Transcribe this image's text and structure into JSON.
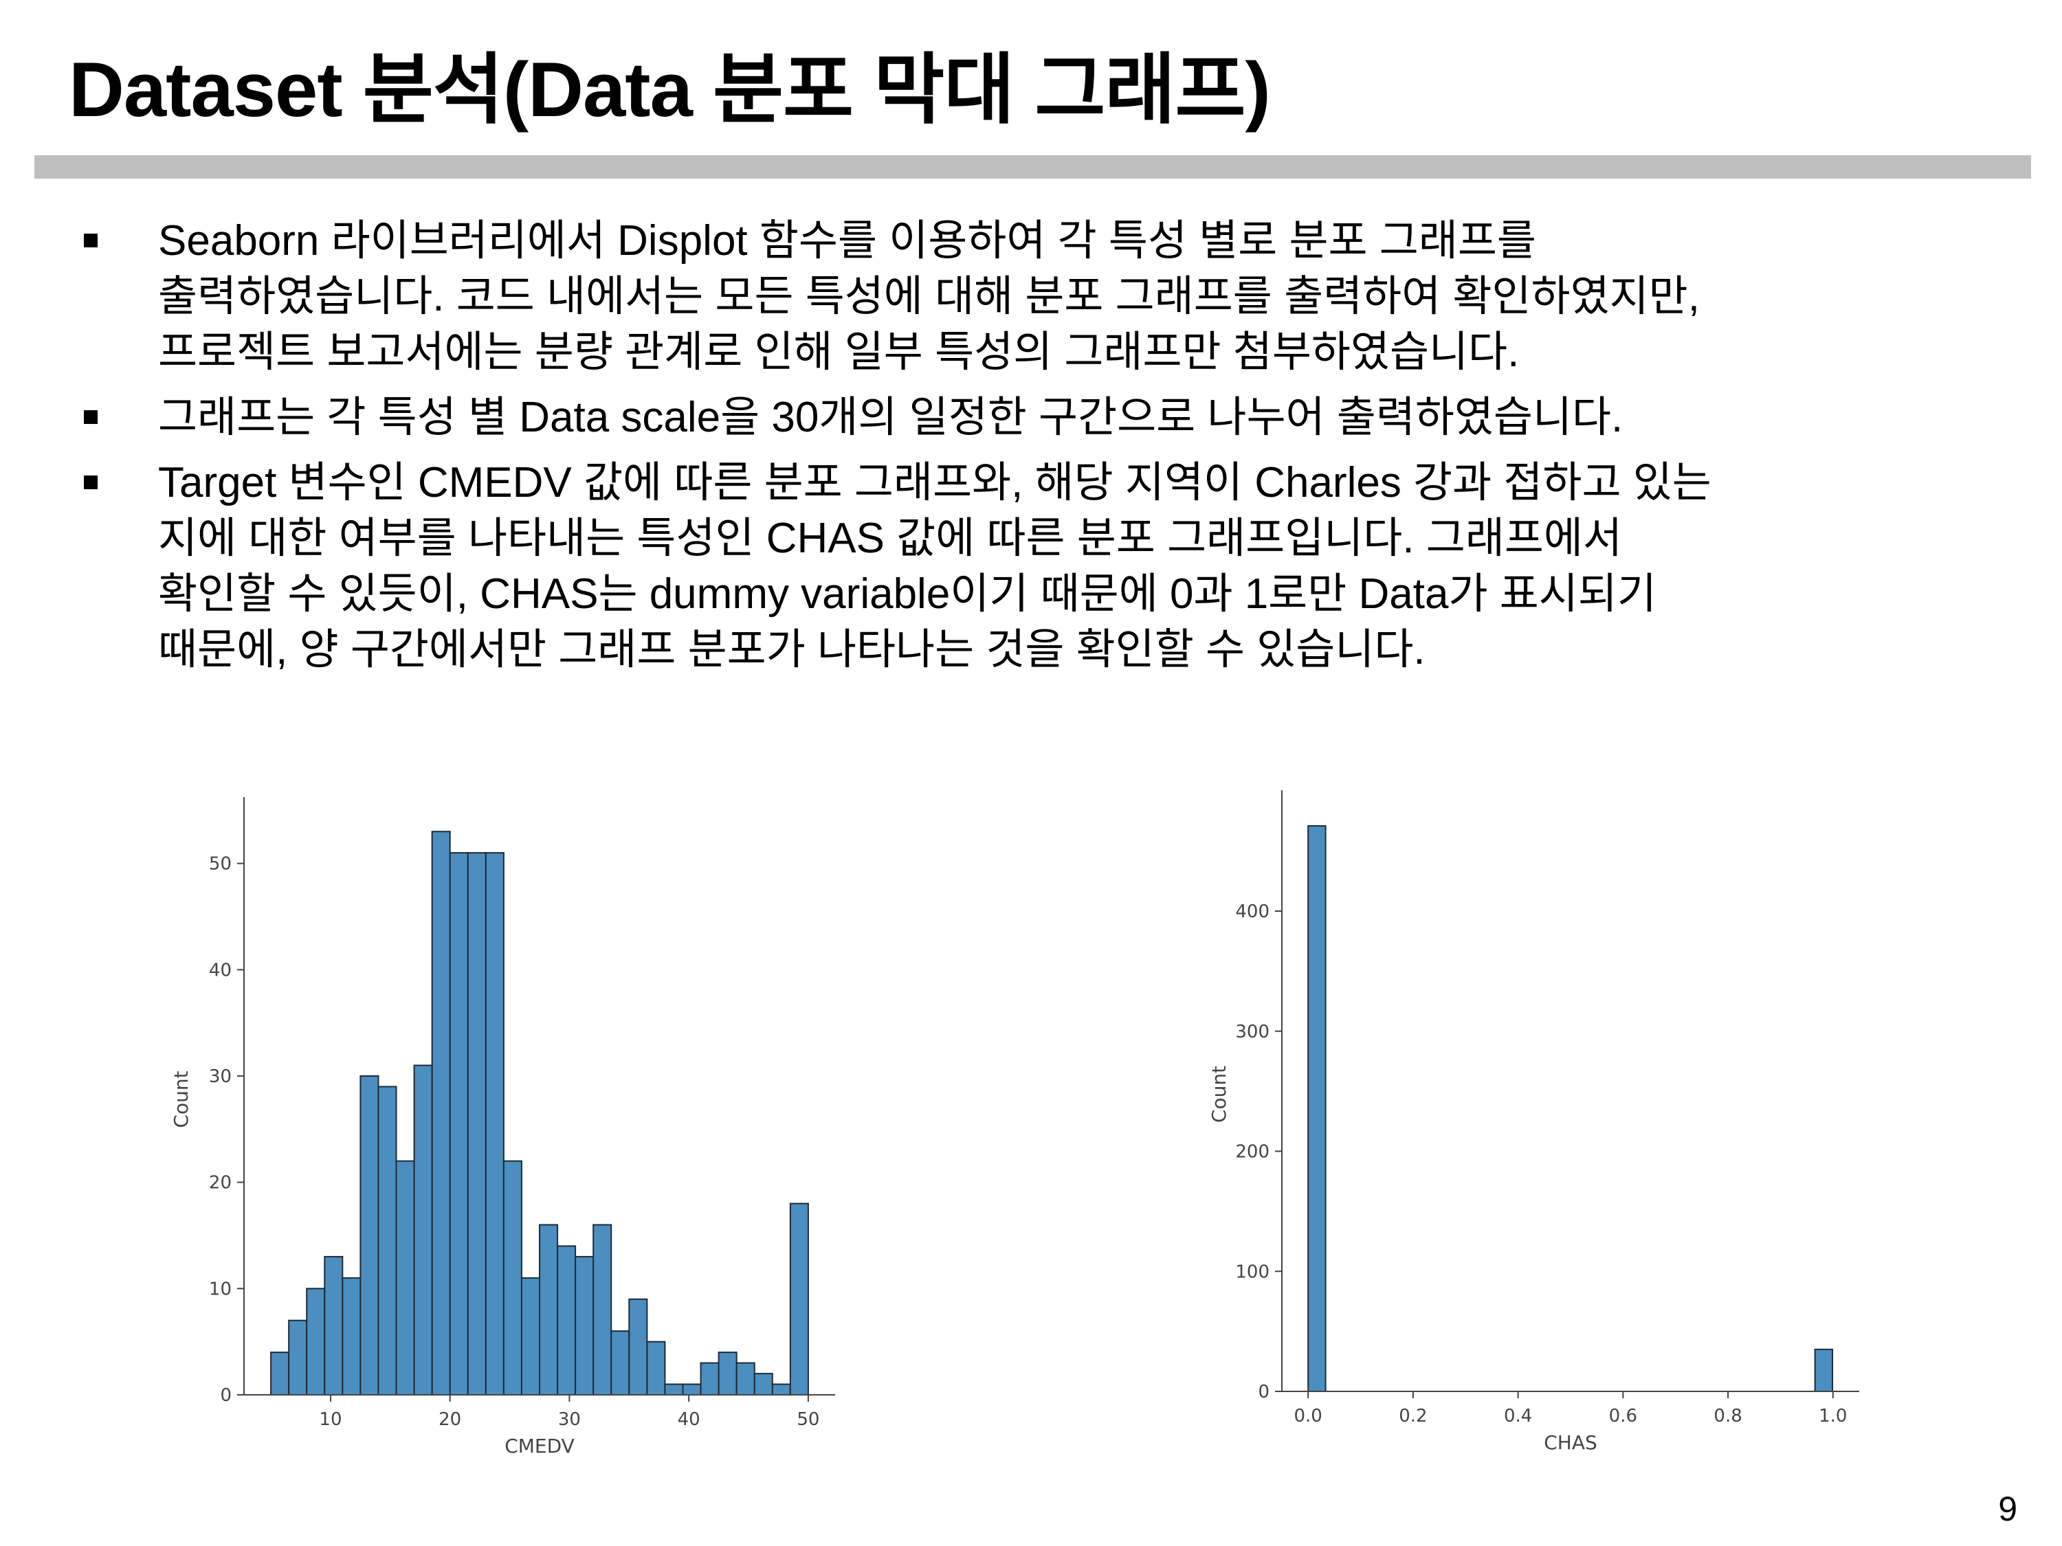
{
  "slide": {
    "title": "Dataset 분석(Data 분포 막대 그래프)",
    "page_number": "9",
    "bullets": [
      [
        "Seaborn 라이브러리에서 Displot 함수를 이용하여 각 특성 별로 분포 그래프를",
        "출력하였습니다. 코드 내에서는 모든 특성에 대해 분포 그래프를 출력하여 확인하였지만,",
        "프로젝트 보고서에는 분량 관계로 인해 일부 특성의 그래프만 첨부하였습니다."
      ],
      [
        "그래프는 각 특성 별 Data scale을 30개의 일정한 구간으로 나누어 출력하였습니다."
      ],
      [
        "Target 변수인 CMEDV 값에 따른 분포 그래프와, 해당 지역이 Charles 강과 접하고 있는",
        "지에 대한 여부를 나타내는 특성인 CHAS 값에 따른 분포 그래프입니다. 그래프에서",
        "확인할 수 있듯이, CHAS는 dummy variable이기 때문에 0과 1로만 Data가 표시되기",
        "때문에, 양 구간에서만 그래프 분포가 나타나는 것을 확인할 수 있습니다."
      ]
    ]
  },
  "colors": {
    "bar": "#4c8ebf",
    "bar_edge": "#1f2a36",
    "axis": "#444444"
  },
  "chart_data": [
    {
      "type": "bar",
      "xlabel": "CMEDV",
      "ylabel": "Count",
      "bin_start": 5.0,
      "bin_width": 1.5,
      "values": [
        4,
        7,
        10,
        13,
        11,
        30,
        29,
        22,
        31,
        53,
        51,
        51,
        51,
        22,
        11,
        16,
        14,
        13,
        16,
        6,
        9,
        5,
        1,
        1,
        3,
        4,
        3,
        2,
        1,
        18
      ],
      "xlim": [
        2.75,
        52.25
      ],
      "ylim": [
        0,
        55.6
      ],
      "xticks": [
        10,
        20,
        30,
        40,
        50
      ],
      "yticks": [
        0,
        10,
        20,
        30,
        40,
        50
      ],
      "grid": false
    },
    {
      "type": "bar",
      "xlabel": "CHAS",
      "ylabel": "Count",
      "bin_start": 0.0,
      "bin_width": 0.0333,
      "values": [
        471,
        0,
        0,
        0,
        0,
        0,
        0,
        0,
        0,
        0,
        0,
        0,
        0,
        0,
        0,
        0,
        0,
        0,
        0,
        0,
        0,
        0,
        0,
        0,
        0,
        0,
        0,
        0,
        0,
        35
      ],
      "xlim": [
        -0.05,
        1.05
      ],
      "ylim": [
        0,
        495
      ],
      "xticks": [
        "0.0",
        "0.2",
        "0.4",
        "0.6",
        "0.8",
        "1.0"
      ],
      "yticks": [
        0,
        100,
        200,
        300,
        400
      ],
      "grid": false
    }
  ]
}
